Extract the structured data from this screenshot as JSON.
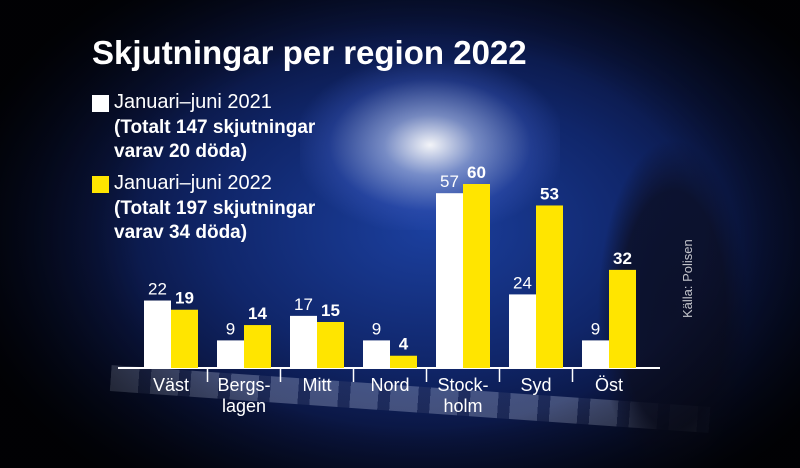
{
  "title": "Skjutningar per region 2022",
  "legend": [
    {
      "label": "Januari–juni 2021",
      "note": "(Totalt 147 skjutningar\nvarav 20 döda)",
      "color": "#ffffff"
    },
    {
      "label": "Januari–juni 2022",
      "note": "(Totalt 197 skjutningar\nvarav 34 döda)",
      "color": "#ffe500"
    }
  ],
  "source": "Källa: Polisen",
  "colors": {
    "series_2021": "#ffffff",
    "series_2022": "#ffe500",
    "background": "#10266a"
  },
  "chart_data": {
    "type": "bar",
    "title": "Skjutningar per region 2022",
    "categories": [
      "Väst",
      "Bergs-\nlagen",
      "Mitt",
      "Nord",
      "Stock-\nholm",
      "Syd",
      "Öst"
    ],
    "series": [
      {
        "name": "Januari–juni 2021",
        "values": [
          22,
          9,
          17,
          9,
          57,
          24,
          9
        ]
      },
      {
        "name": "Januari–juni 2022",
        "values": [
          19,
          14,
          15,
          4,
          60,
          53,
          32
        ]
      }
    ],
    "xlabel": "",
    "ylabel": "",
    "ylim": [
      0,
      60
    ],
    "grid": false,
    "legend_position": "top-left",
    "data_labels": true
  }
}
